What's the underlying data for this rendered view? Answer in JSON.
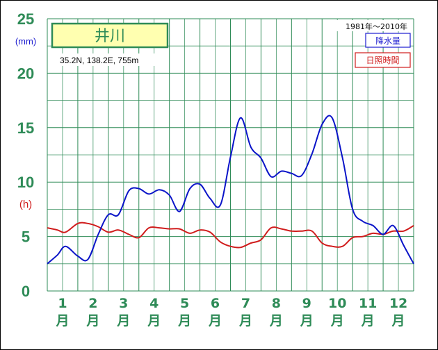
{
  "chart_data": {
    "type": "line",
    "station_name": "井川",
    "location_text": "35.2N,  138.2E,  755m",
    "period_text": "1981年〜2010年",
    "y_unit_precip": "(mm)",
    "y_unit_sun": "(h)",
    "ylim": [
      0,
      25
    ],
    "y_ticks": [
      "0",
      "5",
      "10",
      "15",
      "20",
      "25"
    ],
    "month_numbers": [
      "1",
      "2",
      "3",
      "4",
      "5",
      "6",
      "7",
      "8",
      "9",
      "10",
      "11",
      "12"
    ],
    "month_suffix": "月",
    "grid": true,
    "legend_position": "top-right",
    "series": [
      {
        "name": "降水量",
        "color": "#0a14c8",
        "x": [
          0.0,
          0.33,
          0.6,
          1.0,
          1.33,
          1.67,
          2.0,
          2.33,
          2.67,
          3.0,
          3.33,
          3.67,
          4.0,
          4.33,
          4.67,
          5.0,
          5.33,
          5.67,
          6.0,
          6.33,
          6.67,
          7.0,
          7.33,
          7.67,
          8.0,
          8.33,
          8.67,
          9.0,
          9.33,
          9.67,
          10.0,
          10.33,
          10.67,
          11.0,
          11.33,
          11.67,
          12.0
        ],
        "values": [
          2.5,
          3.3,
          4.1,
          3.2,
          2.9,
          5.2,
          7.0,
          7.0,
          9.2,
          9.4,
          8.9,
          9.3,
          8.8,
          7.3,
          9.4,
          9.8,
          8.5,
          7.9,
          12.3,
          15.9,
          13.2,
          12.2,
          10.5,
          11.0,
          10.8,
          10.6,
          12.6,
          15.3,
          15.9,
          12.2,
          7.5,
          6.4,
          6.0,
          5.2,
          6.0,
          4.2,
          2.5
        ]
      },
      {
        "name": "日照時間",
        "color": "#d01c1c",
        "x": [
          0.0,
          0.33,
          0.6,
          1.0,
          1.33,
          1.67,
          2.0,
          2.33,
          2.67,
          3.0,
          3.33,
          3.67,
          4.0,
          4.33,
          4.67,
          5.0,
          5.33,
          5.67,
          6.0,
          6.33,
          6.67,
          7.0,
          7.33,
          7.67,
          8.0,
          8.33,
          8.67,
          9.0,
          9.33,
          9.67,
          10.0,
          10.33,
          10.67,
          11.0,
          11.33,
          11.67,
          12.0
        ],
        "values": [
          5.8,
          5.6,
          5.4,
          6.2,
          6.2,
          5.9,
          5.4,
          5.6,
          5.2,
          4.9,
          5.8,
          5.8,
          5.7,
          5.7,
          5.3,
          5.6,
          5.4,
          4.5,
          4.1,
          4.0,
          4.4,
          4.7,
          5.8,
          5.7,
          5.5,
          5.5,
          5.5,
          4.4,
          4.1,
          4.1,
          4.9,
          5.0,
          5.3,
          5.2,
          5.5,
          5.5,
          6.0
        ]
      }
    ]
  }
}
